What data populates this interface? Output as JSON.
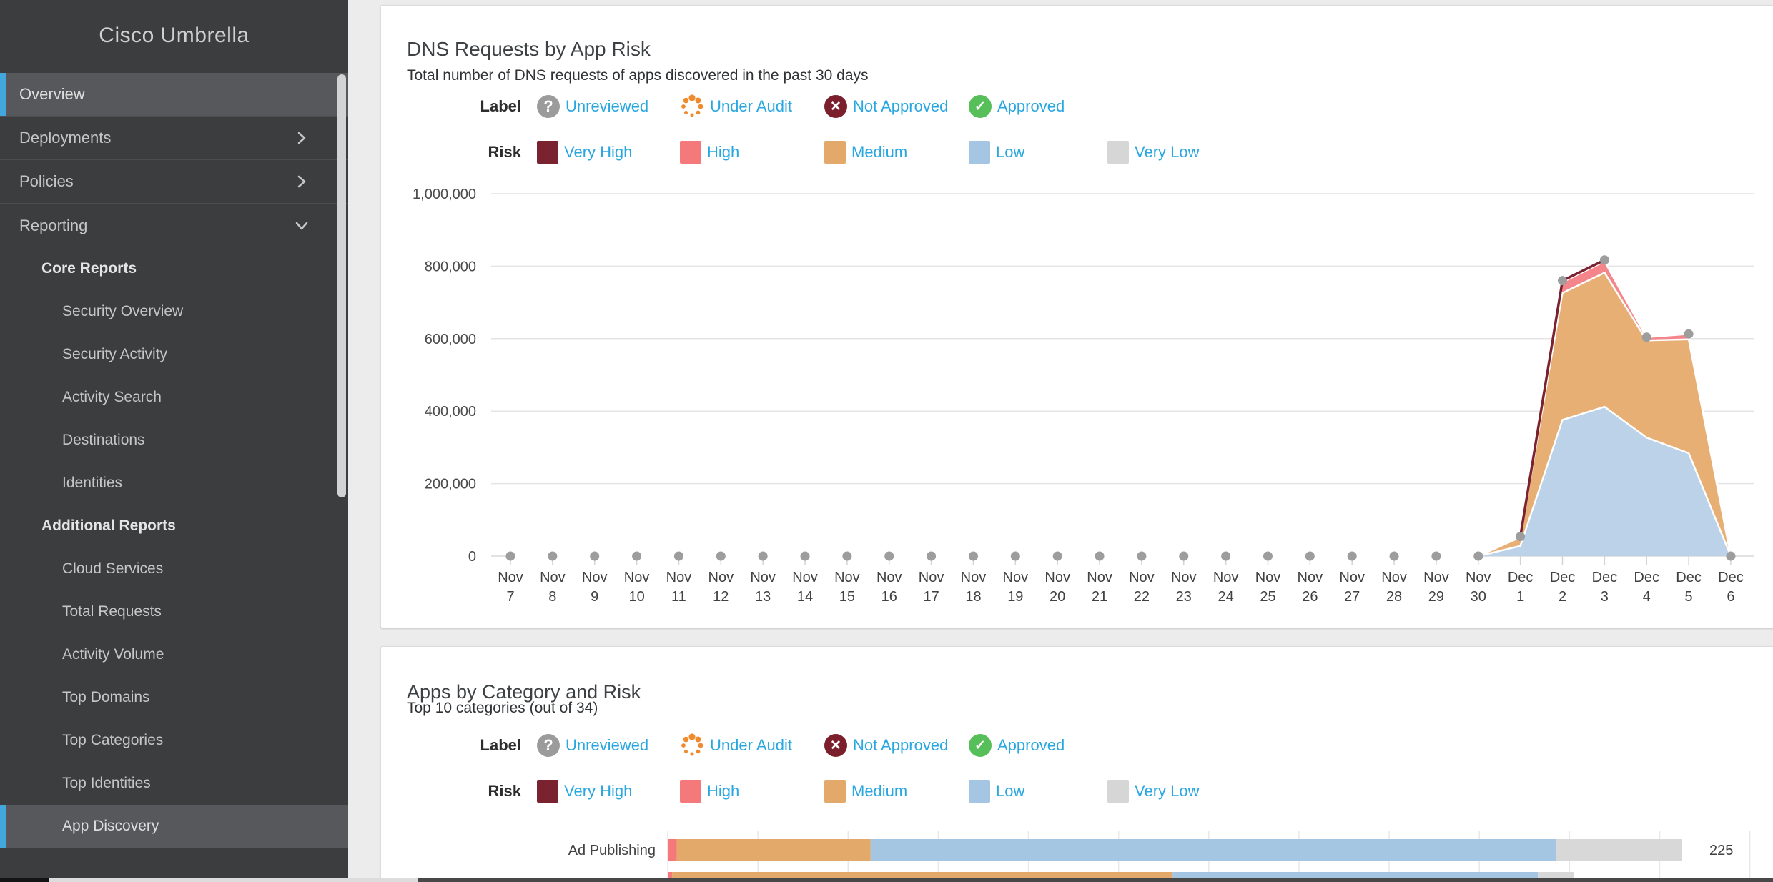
{
  "sidebar": {
    "title": "Cisco Umbrella",
    "items": [
      {
        "label": "Overview",
        "type": "top",
        "selected": true
      },
      {
        "label": "Deployments",
        "type": "top",
        "chevron": "right"
      },
      {
        "label": "Policies",
        "type": "top",
        "chevron": "right"
      },
      {
        "label": "Reporting",
        "type": "top",
        "chevron": "down"
      },
      {
        "label": "Core Reports",
        "type": "section"
      },
      {
        "label": "Security Overview",
        "type": "sub"
      },
      {
        "label": "Security Activity",
        "type": "sub"
      },
      {
        "label": "Activity Search",
        "type": "sub"
      },
      {
        "label": "Destinations",
        "type": "sub"
      },
      {
        "label": "Identities",
        "type": "sub"
      },
      {
        "label": "Additional Reports",
        "type": "section"
      },
      {
        "label": "Cloud Services",
        "type": "sub"
      },
      {
        "label": "Total Requests",
        "type": "sub"
      },
      {
        "label": "Activity Volume",
        "type": "sub"
      },
      {
        "label": "Top Domains",
        "type": "sub"
      },
      {
        "label": "Top Categories",
        "type": "sub"
      },
      {
        "label": "Top Identities",
        "type": "sub"
      },
      {
        "label": "App Discovery",
        "type": "sub",
        "selected": true
      }
    ]
  },
  "legend": {
    "label_caption": "Label",
    "risk_caption": "Risk",
    "text_color": "#29a7e0",
    "labels": [
      {
        "name": "Unreviewed",
        "icon": "question-circle",
        "color": "#9b9b9b"
      },
      {
        "name": "Under Audit",
        "icon": "spinner-dots",
        "color": "#ef8b2d"
      },
      {
        "name": "Not Approved",
        "icon": "x-circle",
        "color": "#7a1f2b"
      },
      {
        "name": "Approved",
        "icon": "check-circle",
        "color": "#57bf5a"
      }
    ],
    "risks": [
      {
        "name": "Very High",
        "color": "#7b2230"
      },
      {
        "name": "High",
        "color": "#f5787b"
      },
      {
        "name": "Medium",
        "color": "#e2a96b"
      },
      {
        "name": "Low",
        "color": "#a5c6e2"
      },
      {
        "name": "Very Low",
        "color": "#d6d6d6"
      }
    ]
  },
  "panel1": {
    "title": "DNS Requests by App Risk",
    "subtitle": "Total number of DNS requests of apps discovered in the past 30 days",
    "chart_data": {
      "type": "area",
      "stacked": true,
      "x": [
        "Nov 7",
        "Nov 8",
        "Nov 9",
        "Nov 10",
        "Nov 11",
        "Nov 12",
        "Nov 13",
        "Nov 14",
        "Nov 15",
        "Nov 16",
        "Nov 17",
        "Nov 18",
        "Nov 19",
        "Nov 20",
        "Nov 21",
        "Nov 22",
        "Nov 23",
        "Nov 24",
        "Nov 25",
        "Nov 26",
        "Nov 27",
        "Nov 28",
        "Nov 29",
        "Nov 30",
        "Dec 1",
        "Dec 2",
        "Dec 3",
        "Dec 4",
        "Dec 5",
        "Dec 6"
      ],
      "ylim": [
        0,
        1000000
      ],
      "ytick_step": 200000,
      "ytick_labels": [
        "0",
        "200,000",
        "400,000",
        "600,000",
        "800,000",
        "1,000,000"
      ],
      "grid": true,
      "point_color": "#9d9d9d",
      "series": [
        {
          "name": "Low",
          "color": "#bcd2e8",
          "values": [
            0,
            0,
            0,
            0,
            0,
            0,
            0,
            0,
            0,
            0,
            0,
            0,
            0,
            0,
            0,
            0,
            0,
            0,
            0,
            0,
            0,
            0,
            0,
            0,
            28000,
            376000,
            412000,
            327000,
            284000,
            0
          ]
        },
        {
          "name": "Medium",
          "color": "#e8af75",
          "values": [
            0,
            0,
            0,
            0,
            0,
            0,
            0,
            0,
            0,
            0,
            0,
            0,
            0,
            0,
            0,
            0,
            0,
            0,
            0,
            0,
            0,
            0,
            0,
            0,
            24000,
            350000,
            370000,
            268000,
            314000,
            0
          ]
        },
        {
          "name": "High",
          "color": "#f4868b",
          "values": [
            0,
            0,
            0,
            0,
            0,
            0,
            0,
            0,
            0,
            0,
            0,
            0,
            0,
            0,
            0,
            0,
            0,
            0,
            0,
            0,
            0,
            0,
            0,
            0,
            2000,
            30000,
            31000,
            9000,
            15000,
            0
          ]
        },
        {
          "name": "Very High",
          "color": "#7a2230",
          "values": [
            0,
            0,
            0,
            0,
            0,
            0,
            0,
            0,
            0,
            0,
            0,
            0,
            0,
            0,
            0,
            0,
            0,
            0,
            0,
            0,
            0,
            0,
            0,
            0,
            0,
            4000,
            4000,
            0,
            0,
            0
          ]
        }
      ]
    }
  },
  "panel2": {
    "title": "Apps by Category and Risk",
    "subtitle": "Top 10 categories (out of 34)",
    "chart_data": {
      "type": "bar",
      "orientation": "horizontal",
      "x_grid_step": 20,
      "categories": [
        "Ad Publishing",
        ""
      ],
      "totals": [
        225,
        null
      ],
      "series": [
        {
          "name": "High",
          "color": "#f5787b",
          "values": [
            2,
            1
          ]
        },
        {
          "name": "Medium",
          "color": "#e2a96b",
          "values": [
            43,
            111
          ]
        },
        {
          "name": "Low",
          "color": "#a5c6e2",
          "values": [
            152,
            81
          ]
        },
        {
          "name": "Very Low",
          "color": "#d8d8d8",
          "values": [
            28,
            8
          ]
        }
      ]
    }
  }
}
